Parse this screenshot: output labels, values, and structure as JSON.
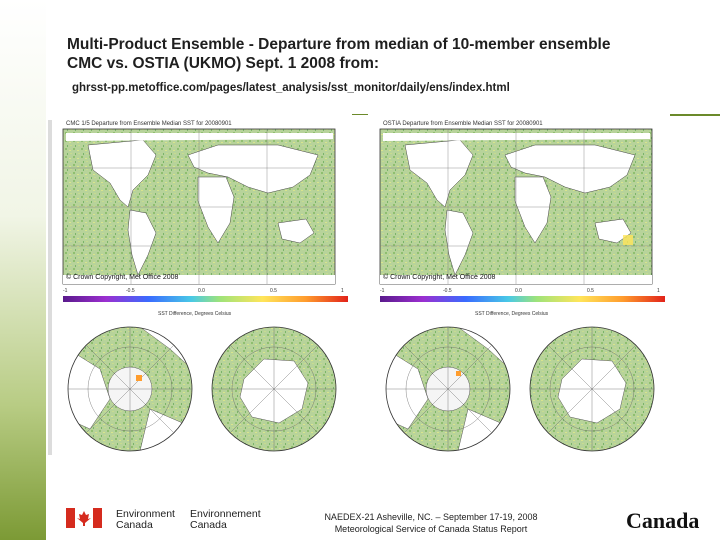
{
  "slide": {
    "title_line1": "Multi-Product Ensemble - Departure from median of 10-member ensemble",
    "title_line2": "CMC vs. OSTIA (UKMO) Sept. 1 2008 from:",
    "url": "ghrsst-pp.metoffice.com/pages/latest_analysis/sst_monitor/daily/ens/index.html"
  },
  "panels": {
    "left": {
      "map_title": "CMC 1/5 Departure from Ensemble Median SST for 20080901",
      "copyright": "© Crown Copyright, Met Office 2008",
      "colorbar_label": "SST Difference, Degrees Celsius",
      "colorbar_ticks": [
        "-1",
        "-0.5",
        "0.0",
        "0.5",
        "1"
      ]
    },
    "right": {
      "map_title": "OSTIA Departure from Ensemble Median SST for 20080901",
      "copyright": "© Crown Copyright, Met Office 2008",
      "colorbar_label": "SST Difference, Degrees Celsius",
      "colorbar_ticks": [
        "-1",
        "-0.5",
        "0.0",
        "0.5",
        "1"
      ]
    }
  },
  "footer": {
    "dept_en_1": "Environment",
    "dept_en_2": "Canada",
    "dept_fr_1": "Environnement",
    "dept_fr_2": "Canada",
    "line1": "NAEDEX-21 Asheville, NC. – September 17-19, 2008",
    "line2": "Meteorological Service of Canada Status Report",
    "wordmark": "Canada"
  },
  "colors": {
    "accent": "#6b8a2a",
    "flag_red": "#d52b1e",
    "map_green": "#a7c88a",
    "land": "#ffffff"
  }
}
